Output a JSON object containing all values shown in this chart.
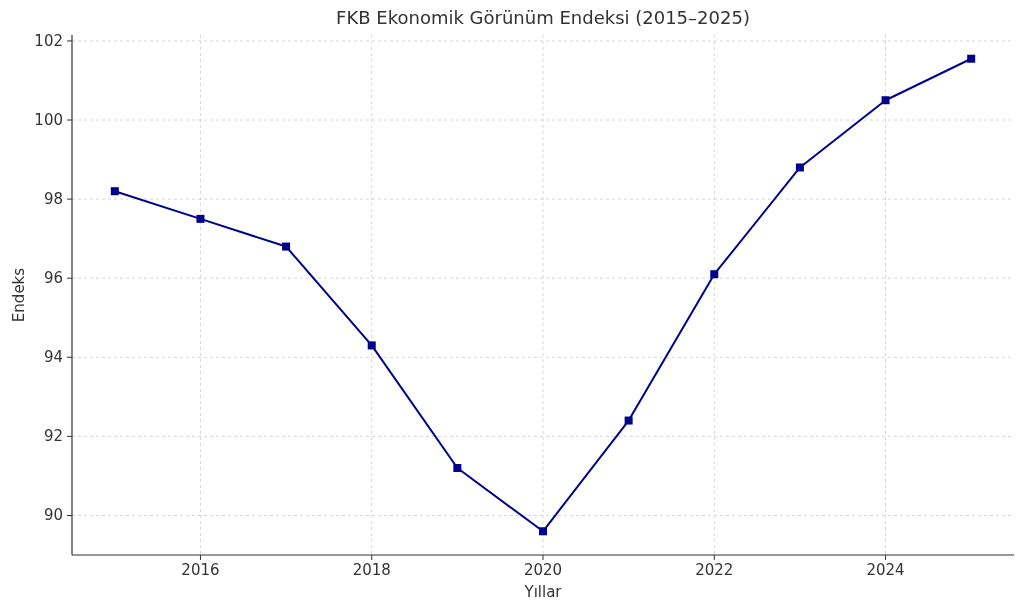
{
  "chart_data": {
    "type": "line",
    "title": "FKB Ekonomik Görünüm Endeksi (2015–2025)",
    "xlabel": "Yıllar",
    "ylabel": "Endeks",
    "x": [
      2015,
      2016,
      2017,
      2018,
      2019,
      2020,
      2021,
      2022,
      2023,
      2024,
      2025
    ],
    "series": [
      {
        "color": "#00008b",
        "values": [
          98.2,
          97.5,
          96.8,
          94.3,
          91.2,
          89.6,
          92.4,
          96.1,
          98.8,
          100.5,
          101.55
        ]
      }
    ],
    "xlim": [
      2014.5,
      2025.5
    ],
    "xticks": [
      2016,
      2018,
      2020,
      2022,
      2024
    ],
    "ylim": [
      89.0,
      102.15
    ],
    "yticks": [
      90,
      92,
      94,
      96,
      98,
      100,
      102
    ],
    "grid": true,
    "marker": "square",
    "line_style": "solid"
  }
}
